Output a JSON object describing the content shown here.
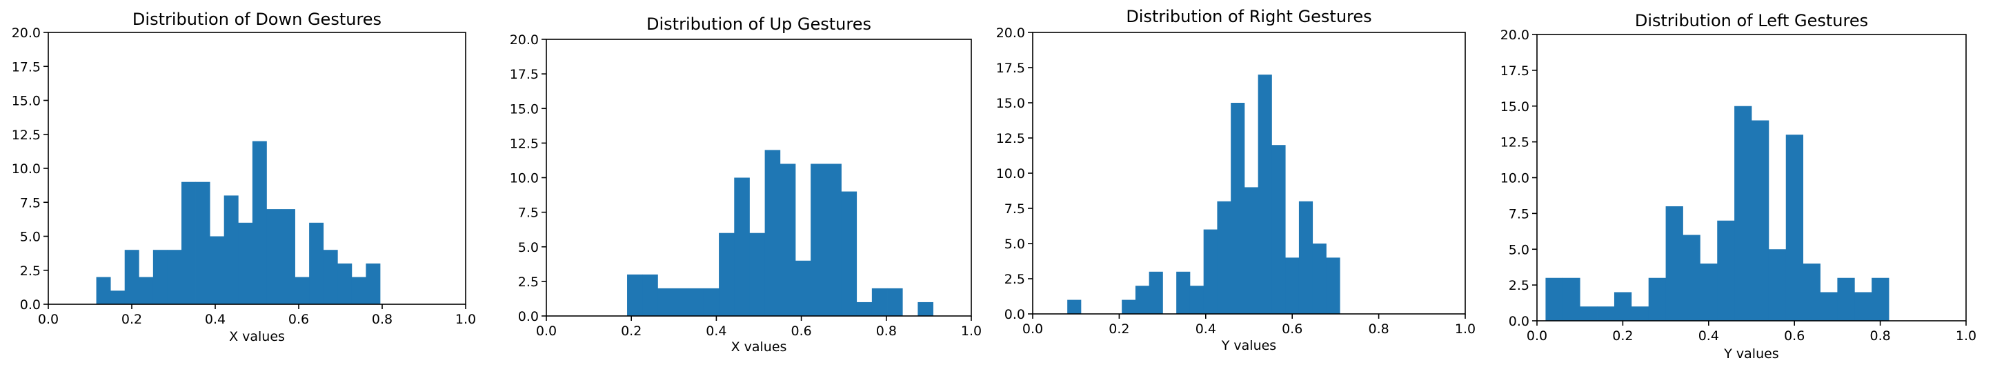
{
  "chart_data": [
    {
      "type": "bar",
      "title": "Distribution of Down Gestures",
      "xlabel": "X values",
      "ylabel": "",
      "xlim": [
        0.0,
        1.0
      ],
      "ylim": [
        0.0,
        20.0
      ],
      "xticks": [
        "0.0",
        "0.2",
        "0.4",
        "0.6",
        "0.8",
        "1.0"
      ],
      "yticks": [
        "0.0",
        "2.5",
        "5.0",
        "7.5",
        "10.0",
        "12.5",
        "15.0",
        "17.5",
        "20.0"
      ],
      "bin_edges": [
        0.115,
        0.149,
        0.183,
        0.217,
        0.251,
        0.285,
        0.319,
        0.353,
        0.387,
        0.421,
        0.455,
        0.489,
        0.523,
        0.557,
        0.591,
        0.625,
        0.659,
        0.693,
        0.727,
        0.761,
        0.795
      ],
      "counts": [
        2,
        1,
        4,
        2,
        4,
        4,
        9,
        9,
        5,
        8,
        6,
        12,
        7,
        7,
        2,
        6,
        4,
        3,
        2,
        3
      ],
      "color": "#1f77b4"
    },
    {
      "type": "bar",
      "title": "Distribution of Up Gestures",
      "xlabel": "X values",
      "ylabel": "",
      "xlim": [
        0.0,
        1.0
      ],
      "ylim": [
        0.0,
        20.0
      ],
      "xticks": [
        "0.0",
        "0.2",
        "0.4",
        "0.6",
        "0.8",
        "1.0"
      ],
      "yticks": [
        "0.0",
        "2.5",
        "5.0",
        "7.5",
        "10.0",
        "12.5",
        "15.0",
        "17.5",
        "20.0"
      ],
      "bin_edges": [
        0.19,
        0.226,
        0.262,
        0.298,
        0.334,
        0.37,
        0.406,
        0.442,
        0.478,
        0.514,
        0.55,
        0.586,
        0.622,
        0.658,
        0.694,
        0.73,
        0.766,
        0.802,
        0.838,
        0.874,
        0.91
      ],
      "counts": [
        3,
        3,
        2,
        2,
        2,
        2,
        6,
        10,
        6,
        12,
        11,
        4,
        11,
        11,
        9,
        1,
        2,
        2,
        0,
        1
      ],
      "color": "#1f77b4"
    },
    {
      "type": "bar",
      "title": "Distribution of Right Gestures",
      "xlabel": "Y values",
      "ylabel": "",
      "xlim": [
        0.0,
        1.0
      ],
      "ylim": [
        0.0,
        20.0
      ],
      "xticks": [
        "0.0",
        "0.2",
        "0.4",
        "0.6",
        "0.8",
        "1.0"
      ],
      "yticks": [
        "0.0",
        "2.5",
        "5.0",
        "7.5",
        "10.0",
        "12.5",
        "15.0",
        "17.5",
        "20.0"
      ],
      "bin_edges": [
        0.08,
        0.1115,
        0.143,
        0.1745,
        0.206,
        0.2375,
        0.269,
        0.3005,
        0.332,
        0.3635,
        0.395,
        0.4265,
        0.458,
        0.4895,
        0.521,
        0.5525,
        0.584,
        0.6155,
        0.647,
        0.6785,
        0.71
      ],
      "counts": [
        1,
        0,
        0,
        0,
        1,
        2,
        3,
        0,
        3,
        2,
        6,
        8,
        15,
        9,
        17,
        12,
        4,
        8,
        5,
        4
      ],
      "color": "#1f77b4"
    },
    {
      "type": "bar",
      "title": "Distribution of Left Gestures",
      "xlabel": "Y values",
      "ylabel": "",
      "xlim": [
        0.0,
        1.0
      ],
      "ylim": [
        0.0,
        20.0
      ],
      "xticks": [
        "0.0",
        "0.2",
        "0.4",
        "0.6",
        "0.8",
        "1.0"
      ],
      "yticks": [
        "0.0",
        "2.5",
        "5.0",
        "7.5",
        "10.0",
        "12.5",
        "15.0",
        "17.5",
        "20.0"
      ],
      "bin_edges": [
        0.02,
        0.06,
        0.1,
        0.14,
        0.18,
        0.22,
        0.26,
        0.3,
        0.34,
        0.38,
        0.42,
        0.46,
        0.5,
        0.54,
        0.58,
        0.62,
        0.66,
        0.7,
        0.74,
        0.78,
        0.82
      ],
      "counts": [
        3,
        3,
        1,
        1,
        2,
        1,
        3,
        8,
        6,
        4,
        7,
        15,
        14,
        5,
        13,
        4,
        2,
        3,
        2,
        3
      ],
      "color": "#1f77b4"
    }
  ]
}
